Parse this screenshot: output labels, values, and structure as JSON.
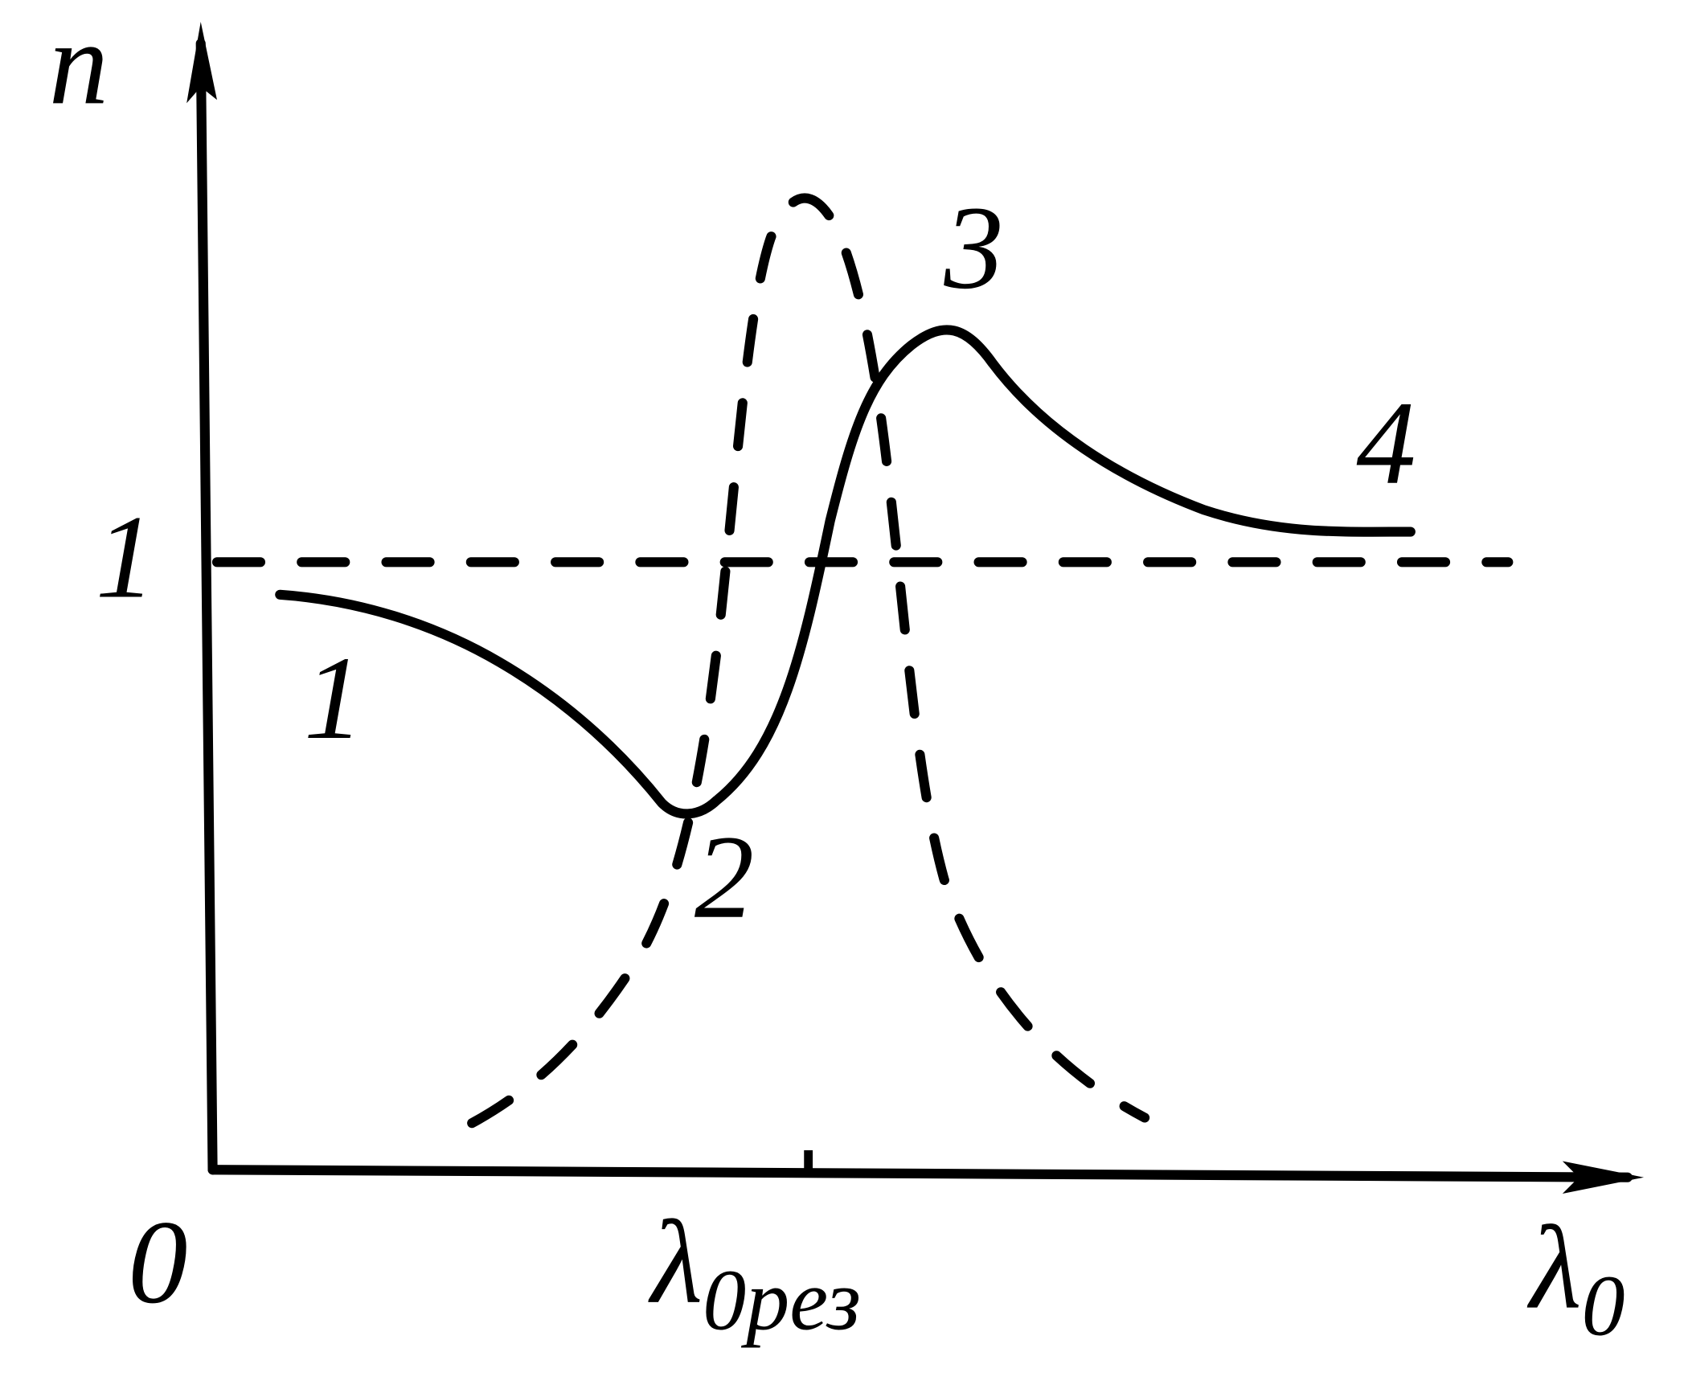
{
  "axes": {
    "y_label": "n",
    "x_label": {
      "symbol": "λ",
      "subscript": "0"
    },
    "origin": "0",
    "unit_level": "1",
    "resonance": {
      "symbol": "λ",
      "subscript": "0рез"
    }
  },
  "curve_labels": [
    "1",
    "2",
    "3",
    "4"
  ]
}
